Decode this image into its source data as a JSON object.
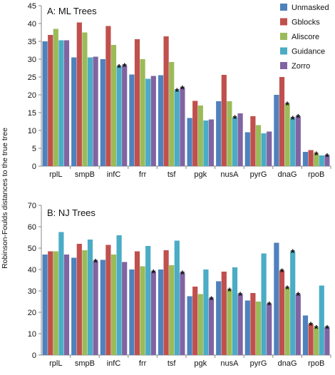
{
  "figure": {
    "shared_ylabel": "Robinson-Foulds distances to the true tree"
  },
  "chart_data": [
    {
      "type": "bar",
      "title": "A: ML Trees",
      "xlabel": "",
      "ylabel": "Robinson-Foulds distances to the true tree",
      "ylim": [
        0,
        45
      ],
      "yticks": [
        0,
        5,
        10,
        15,
        20,
        25,
        30,
        35,
        40,
        45
      ],
      "grid": false,
      "legend": "top-right",
      "categories": [
        "rplL",
        "smpB",
        "infC",
        "frr",
        "tsf",
        "pgk",
        "nusA",
        "pyrG",
        "dnaG",
        "rpoB"
      ],
      "series": [
        {
          "name": "Unmasked",
          "color": "#4F81BD",
          "values": [
            35,
            30.5,
            30,
            25.7,
            25.5,
            13.5,
            18.2,
            9.5,
            20,
            4
          ]
        },
        {
          "name": "Gblocks",
          "color": "#C0504D",
          "values": [
            36.8,
            40.3,
            39.3,
            35.6,
            36.4,
            18.3,
            25.6,
            14,
            25,
            4.5
          ]
        },
        {
          "name": "Aliscore",
          "color": "#9BBB59",
          "values": [
            38.5,
            37.5,
            34,
            30,
            29.2,
            17,
            18.2,
            11.5,
            17.5,
            3.5
          ]
        },
        {
          "name": "Guidance",
          "color": "#4BACC6",
          "values": [
            35.3,
            30.5,
            28,
            24.5,
            21.3,
            12.8,
            13.7,
            9.2,
            13.5,
            3
          ]
        },
        {
          "name": "Zorro",
          "color": "#8064A2",
          "values": [
            35.3,
            30.7,
            28.3,
            25.3,
            22,
            13.1,
            14.8,
            9.7,
            14,
            3
          ]
        }
      ],
      "annotations": [
        {
          "text": "*",
          "category": "infC",
          "series": "Guidance"
        },
        {
          "text": "*",
          "category": "infC",
          "series": "Zorro"
        },
        {
          "text": "*",
          "category": "tsf",
          "series": "Guidance"
        },
        {
          "text": "*",
          "category": "tsf",
          "series": "Zorro"
        },
        {
          "text": "*",
          "category": "nusA",
          "series": "Guidance"
        },
        {
          "text": "*",
          "category": "dnaG",
          "series": "Aliscore"
        },
        {
          "text": "*",
          "category": "dnaG",
          "series": "Guidance"
        },
        {
          "text": "*",
          "category": "dnaG",
          "series": "Zorro"
        },
        {
          "text": "*",
          "category": "rpoB",
          "series": "Aliscore"
        },
        {
          "text": "*",
          "category": "rpoB",
          "series": "Zorro"
        }
      ]
    },
    {
      "type": "bar",
      "title": "B: NJ Trees",
      "xlabel": "",
      "ylabel": "Robinson-Foulds distances to the true tree",
      "ylim": [
        0,
        70
      ],
      "yticks": [
        0,
        10,
        20,
        30,
        40,
        50,
        60,
        70
      ],
      "grid": false,
      "legend": "",
      "categories": [
        "rplL",
        "smpB",
        "infC",
        "frr",
        "tsf",
        "pgk",
        "nusA",
        "pyrG",
        "dnaG",
        "rpoB"
      ],
      "series": [
        {
          "name": "Unmasked",
          "color": "#4F81BD",
          "values": [
            47,
            45.5,
            44.5,
            40,
            40,
            27.5,
            34.5,
            25.5,
            52.5,
            18.5
          ]
        },
        {
          "name": "Gblocks",
          "color": "#C0504D",
          "values": [
            48.5,
            52,
            51.5,
            48.5,
            49,
            32,
            39,
            29,
            39.5,
            14.5
          ]
        },
        {
          "name": "Aliscore",
          "color": "#9BBB59",
          "values": [
            48.5,
            49,
            47,
            41.5,
            42,
            28.5,
            30.5,
            25,
            31.5,
            13
          ]
        },
        {
          "name": "Guidance",
          "color": "#4BACC6",
          "values": [
            57.5,
            54,
            56,
            51,
            53.5,
            40,
            41,
            47.5,
            48.5,
            32.5
          ]
        },
        {
          "name": "Zorro",
          "color": "#8064A2",
          "values": [
            47,
            44,
            43.5,
            39,
            38.5,
            26.5,
            28.5,
            24,
            28.5,
            13
          ]
        }
      ],
      "annotations": [
        {
          "text": "*",
          "category": "smpB",
          "series": "Zorro"
        },
        {
          "text": "*",
          "category": "frr",
          "series": "Zorro"
        },
        {
          "text": "*",
          "category": "tsf",
          "series": "Zorro"
        },
        {
          "text": "*",
          "category": "pgk",
          "series": "Zorro"
        },
        {
          "text": "*",
          "category": "nusA",
          "series": "Aliscore"
        },
        {
          "text": "*",
          "category": "nusA",
          "series": "Zorro"
        },
        {
          "text": "*",
          "category": "pyrG",
          "series": "Zorro"
        },
        {
          "text": "*",
          "category": "dnaG",
          "series": "Gblocks"
        },
        {
          "text": "*",
          "category": "dnaG",
          "series": "Aliscore"
        },
        {
          "text": "*",
          "category": "dnaG",
          "series": "Guidance"
        },
        {
          "text": "*",
          "category": "dnaG",
          "series": "Zorro"
        },
        {
          "text": "*",
          "category": "rpoB",
          "series": "Gblocks"
        },
        {
          "text": "*",
          "category": "rpoB",
          "series": "Aliscore"
        },
        {
          "text": "*",
          "category": "rpoB",
          "series": "Zorro"
        }
      ]
    }
  ]
}
